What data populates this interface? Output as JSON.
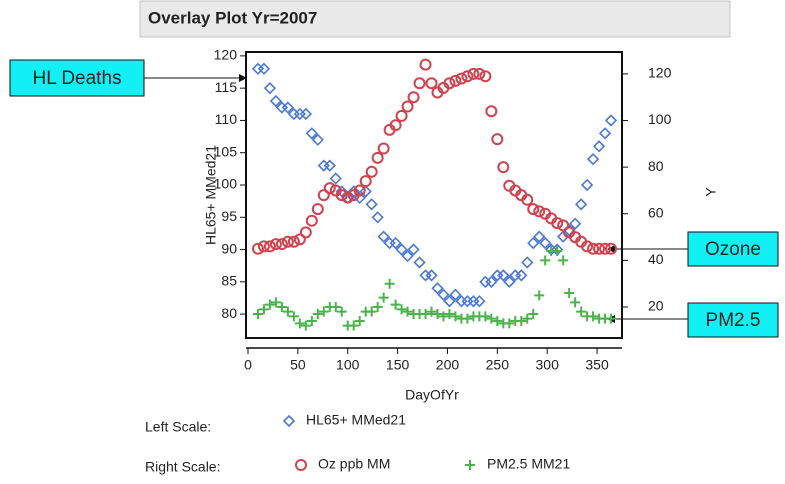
{
  "chart_data": {
    "type": "scatter",
    "title": "Overlay Plot Yr=2007",
    "x_label": "DayOfYr",
    "y_label": "HL65+ MMed21",
    "y2_label": "Y",
    "legend_labels": [
      "Left Scale:",
      "Right Scale:"
    ],
    "annotations": [
      "HL Deaths",
      "Ozone",
      "PM2.5"
    ],
    "xlim": [
      -2,
      375
    ],
    "xticks": [
      0,
      50,
      100,
      150,
      200,
      250,
      300,
      350
    ],
    "ylim": [
      76.3,
      120.6
    ],
    "yticks": [
      80,
      85,
      90,
      95,
      100,
      105,
      110,
      115,
      120
    ],
    "y2lim": [
      6.7,
      129.4
    ],
    "y2ticks": [
      20,
      40,
      60,
      80,
      100,
      120
    ],
    "x": [
      10,
      16,
      22,
      28,
      34,
      40,
      46,
      52,
      58,
      64,
      70,
      76,
      82,
      88,
      94,
      100,
      106,
      112,
      118,
      124,
      130,
      136,
      142,
      148,
      154,
      160,
      166,
      172,
      178,
      184,
      190,
      196,
      202,
      208,
      214,
      220,
      226,
      232,
      238,
      244,
      250,
      256,
      262,
      268,
      274,
      280,
      286,
      292,
      298,
      304,
      310,
      316,
      322,
      328,
      334,
      340,
      346,
      352,
      358,
      364
    ],
    "series": [
      {
        "name": "HL65+ MMed21",
        "color": "#4a78d6",
        "marker": "diamond",
        "values": [
          118,
          118,
          115,
          113,
          112,
          112,
          111,
          111,
          111,
          108,
          107,
          103,
          103,
          101,
          99,
          98,
          99,
          98,
          99,
          97,
          95,
          92,
          91,
          91,
          90,
          89,
          90,
          88,
          86,
          86,
          84,
          83,
          82,
          83,
          82,
          82,
          82,
          82,
          85,
          85,
          86,
          86,
          85,
          86,
          86,
          88,
          91,
          92,
          91,
          90,
          90,
          92,
          93,
          94,
          97,
          100,
          104,
          106,
          108,
          110
        ]
      },
      {
        "name": "Oz ppb MM",
        "color": "#d0424e",
        "marker": "circle",
        "axis": "y2",
        "values": [
          45,
          46,
          46,
          47,
          47,
          48,
          48,
          49,
          52,
          57,
          62,
          68,
          71,
          70,
          68,
          67,
          68,
          70,
          74,
          78,
          84,
          88,
          96,
          98,
          102,
          106,
          110,
          116,
          124,
          116,
          112,
          114,
          116,
          117,
          118,
          119,
          120,
          120,
          119,
          104,
          92,
          80,
          72,
          70,
          68,
          66,
          62,
          61,
          60,
          58,
          56,
          55,
          52,
          50,
          48,
          46,
          45,
          45,
          45,
          45
        ]
      },
      {
        "name": "PM2.5 MM21",
        "color": "#4bb34b",
        "marker": "plus",
        "axis": "y2",
        "values": [
          17,
          19,
          21,
          22,
          20,
          18,
          16,
          13,
          12,
          14,
          17,
          18,
          20,
          20,
          18,
          12,
          12,
          14,
          18,
          18,
          20,
          24,
          30,
          21,
          19,
          18,
          17,
          17,
          17,
          18,
          17,
          16,
          17,
          16,
          15,
          15,
          16,
          16,
          16,
          15,
          14,
          13,
          13,
          14,
          14,
          15,
          17,
          25,
          40,
          44,
          44,
          40,
          26,
          22,
          18,
          16,
          16,
          15,
          15,
          15
        ]
      }
    ]
  }
}
